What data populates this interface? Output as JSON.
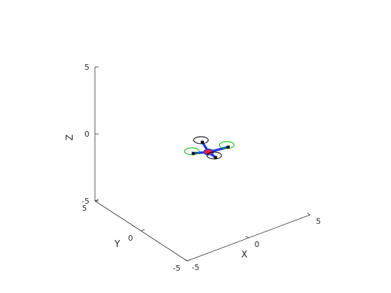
{
  "chart_data": {
    "type": "3d-plot",
    "title": "",
    "xlabel": "X",
    "ylabel": "Y",
    "zlabel": "Z",
    "xlim": [
      -5,
      5
    ],
    "ylim": [
      -5,
      5
    ],
    "zlim": [
      -5,
      5
    ],
    "x_ticks": [
      "-5",
      "0",
      "5"
    ],
    "y_ticks": [
      "-5",
      "0",
      "5"
    ],
    "z_ticks": [
      "-5",
      "0",
      "5"
    ],
    "grid": false,
    "object": {
      "name": "quadcopter",
      "position": [
        0.5,
        0.0,
        -1.0
      ],
      "body_color": "#e0204a",
      "arm_color": "#1f3fe0",
      "motor_color": "#111111",
      "rotors": [
        {
          "name": "rotor-1",
          "color": "#000000"
        },
        {
          "name": "rotor-2",
          "color": "#00c000"
        },
        {
          "name": "rotor-3",
          "color": "#000000"
        },
        {
          "name": "rotor-4",
          "color": "#00c000"
        }
      ]
    }
  }
}
